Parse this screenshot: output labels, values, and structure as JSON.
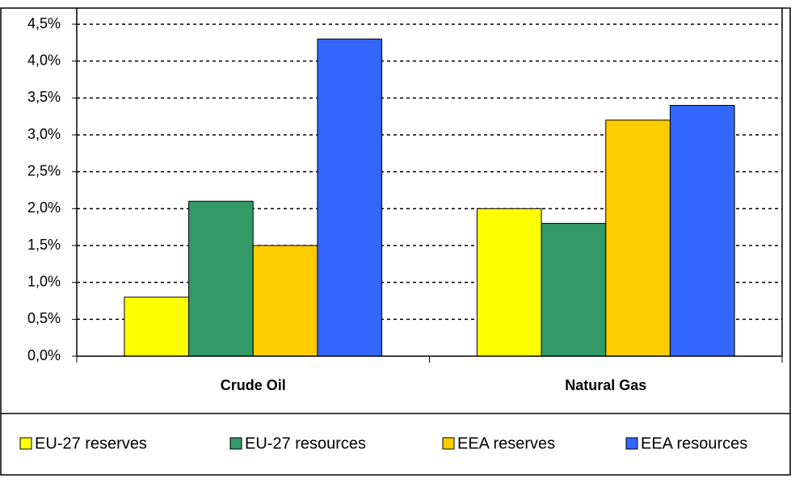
{
  "chart_data": {
    "type": "bar",
    "categories": [
      "Crude Oil",
      "Natural Gas"
    ],
    "series": [
      {
        "name": "EU-27 reserves",
        "color": "#ffff00",
        "values": [
          0.8,
          2.0
        ]
      },
      {
        "name": "EU-27 resources",
        "color": "#339966",
        "values": [
          2.1,
          1.8
        ]
      },
      {
        "name": "EEA reserves",
        "color": "#ffcc00",
        "values": [
          1.5,
          3.2
        ]
      },
      {
        "name": "EEA resources",
        "color": "#3366ff",
        "values": [
          4.3,
          3.4
        ]
      }
    ],
    "ylim": [
      0,
      4.5
    ],
    "yticks": [
      {
        "value": 0,
        "label": "0,0%"
      },
      {
        "value": 0.5,
        "label": "0,5%"
      },
      {
        "value": 1,
        "label": "1,0%"
      },
      {
        "value": 1.5,
        "label": "1,5%"
      },
      {
        "value": 2,
        "label": "2,0%"
      },
      {
        "value": 2.5,
        "label": "2,5%"
      },
      {
        "value": 3,
        "label": "3,0%"
      },
      {
        "value": 3.5,
        "label": "3,5%"
      },
      {
        "value": 4,
        "label": "4,0%"
      },
      {
        "value": 4.5,
        "label": "4,5%"
      }
    ],
    "grid": true,
    "legend": "bottom"
  }
}
